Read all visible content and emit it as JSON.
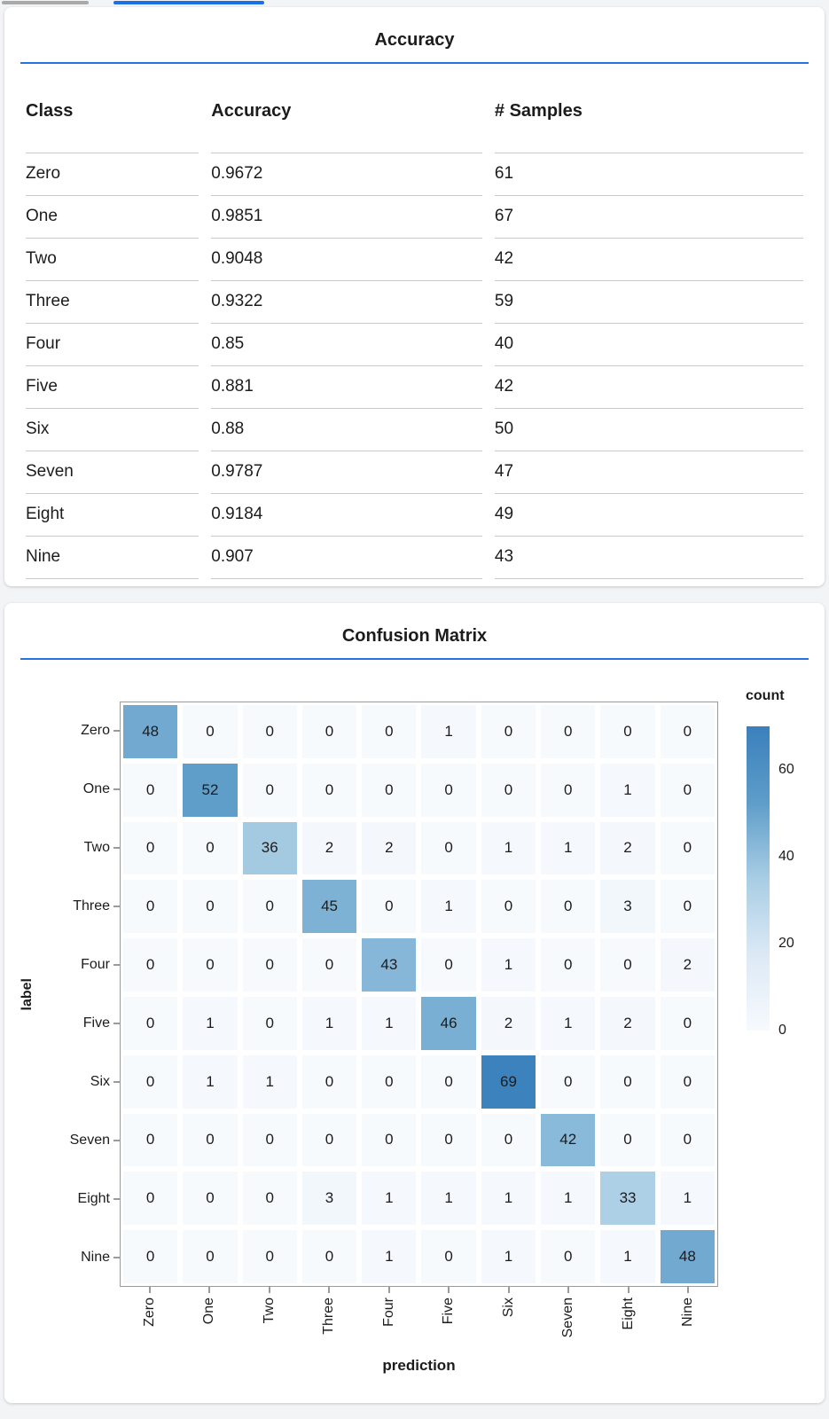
{
  "tabs": {
    "inactive_indicator_color": "#a9a9a9",
    "active_indicator_color": "#1e6ee8"
  },
  "accuracy_card": {
    "title": "Accuracy",
    "rule_color": "#2273e6",
    "table": {
      "columns": [
        "Class",
        "Accuracy",
        "# Samples"
      ],
      "rows": [
        [
          "Zero",
          "0.9672",
          "61"
        ],
        [
          "One",
          "0.9851",
          "67"
        ],
        [
          "Two",
          "0.9048",
          "42"
        ],
        [
          "Three",
          "0.9322",
          "59"
        ],
        [
          "Four",
          "0.85",
          "40"
        ],
        [
          "Five",
          "0.881",
          "42"
        ],
        [
          "Six",
          "0.88",
          "50"
        ],
        [
          "Seven",
          "0.9787",
          "47"
        ],
        [
          "Eight",
          "0.9184",
          "49"
        ],
        [
          "Nine",
          "0.907",
          "43"
        ]
      ]
    }
  },
  "confusion_card": {
    "title": "Confusion Matrix",
    "rule_color": "#2273e6",
    "chart_data": {
      "type": "heatmap",
      "title": "Confusion Matrix",
      "xlabel": "prediction",
      "ylabel": "label",
      "x_categories": [
        "Zero",
        "One",
        "Two",
        "Three",
        "Four",
        "Five",
        "Six",
        "Seven",
        "Eight",
        "Nine"
      ],
      "y_categories": [
        "Zero",
        "One",
        "Two",
        "Three",
        "Four",
        "Five",
        "Six",
        "Seven",
        "Eight",
        "Nine"
      ],
      "matrix": [
        [
          48,
          0,
          0,
          0,
          0,
          1,
          0,
          0,
          0,
          0
        ],
        [
          0,
          52,
          0,
          0,
          0,
          0,
          0,
          0,
          1,
          0
        ],
        [
          0,
          0,
          36,
          2,
          2,
          0,
          1,
          1,
          2,
          0
        ],
        [
          0,
          0,
          0,
          45,
          0,
          1,
          0,
          0,
          3,
          0
        ],
        [
          0,
          0,
          0,
          0,
          43,
          0,
          1,
          0,
          0,
          2
        ],
        [
          0,
          1,
          0,
          1,
          1,
          46,
          2,
          1,
          2,
          0
        ],
        [
          0,
          1,
          1,
          0,
          0,
          0,
          69,
          0,
          0,
          0
        ],
        [
          0,
          0,
          0,
          0,
          0,
          0,
          0,
          42,
          0,
          0
        ],
        [
          0,
          0,
          0,
          3,
          1,
          1,
          1,
          1,
          33,
          1
        ],
        [
          0,
          0,
          0,
          0,
          1,
          0,
          1,
          0,
          1,
          48
        ]
      ],
      "legend": {
        "title": "count",
        "tick_values": [
          60,
          40,
          20,
          0
        ],
        "domain": [
          0,
          70
        ],
        "position": "right"
      },
      "grid": false,
      "colors": {
        "scheme": "blues",
        "ramp": [
          "#f7fafd",
          "#dce9f5",
          "#a8cde4",
          "#5e9dc9",
          "#3a80bb"
        ],
        "plot_border": "#9b9b9b",
        "cell_text": "#1c1c1e"
      }
    }
  }
}
